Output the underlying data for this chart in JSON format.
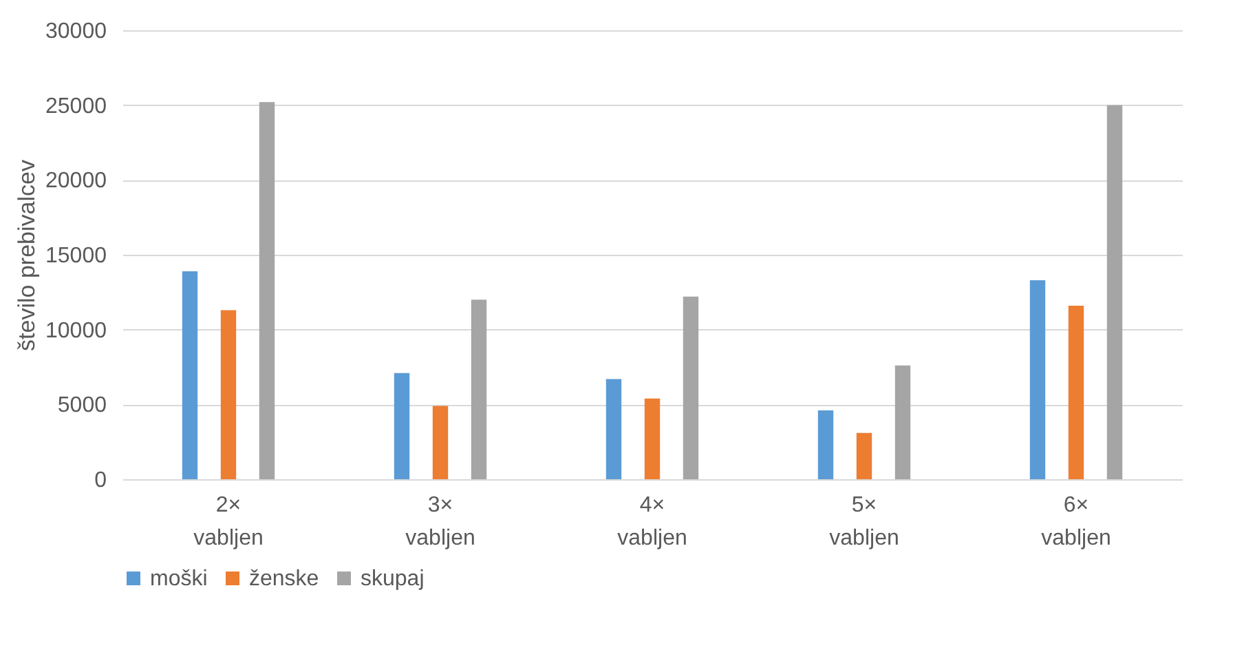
{
  "chart_data": {
    "type": "bar",
    "ylabel": "število prebivalcev",
    "categories": [
      "2× vabljen",
      "3× vabljen",
      "4× vabljen",
      "5× vabljen",
      "6× vabljen"
    ],
    "series": [
      {
        "name": "moški",
        "color": "#5b9bd5",
        "values": [
          13900,
          7100,
          6700,
          4600,
          13300
        ]
      },
      {
        "name": "ženske",
        "color": "#ed7d31",
        "values": [
          11300,
          4900,
          5400,
          3100,
          11600
        ]
      },
      {
        "name": "skupaj",
        "color": "#a5a5a5",
        "values": [
          25200,
          12000,
          12200,
          7600,
          25000
        ]
      }
    ],
    "ylim": [
      0,
      30000
    ],
    "yticks": [
      0,
      5000,
      10000,
      15000,
      20000,
      25000,
      30000
    ],
    "grid": "y",
    "legend": "bottom"
  }
}
